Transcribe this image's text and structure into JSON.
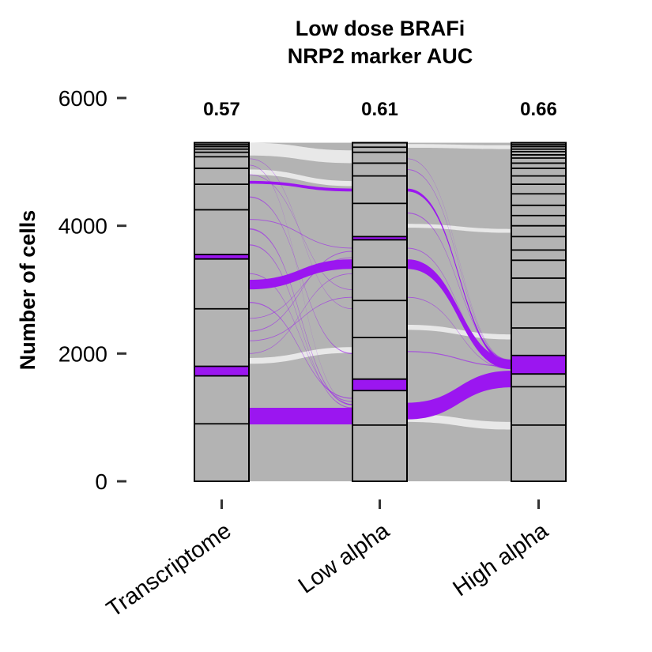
{
  "chart_data": {
    "type": "alluvial",
    "title": "Low dose BRAFi",
    "subtitle": "NRP2 marker AUC",
    "ylabel": "Number of cells",
    "xlabel": "",
    "ylim": [
      0,
      6000
    ],
    "yticks": [
      0,
      2000,
      4000,
      6000
    ],
    "total_cells": 5300,
    "categories": [
      "Transcriptome",
      "Low alpha",
      "High alpha"
    ],
    "auc": [
      "0.57",
      "0.61",
      "0.66"
    ],
    "colors": {
      "highlight": "#9b16f0",
      "background": "#b3b3b3",
      "stratum_border": "#000000"
    },
    "axes": [
      {
        "name": "Transcriptome",
        "boundaries": [
          900,
          1650,
          1800,
          2700,
          3480,
          3550,
          4250,
          4650,
          4900,
          5080,
          5150,
          5200,
          5240,
          5270
        ],
        "highlight_stratum": [
          1650,
          1800
        ],
        "highlight_stratum_2": [
          3480,
          3550
        ]
      },
      {
        "name": "Low alpha",
        "boundaries": [
          880,
          1420,
          1600,
          2250,
          2830,
          3350,
          3780,
          3830,
          4350,
          4780,
          4980,
          5150,
          5230
        ],
        "highlight_stratum": [
          1420,
          1600
        ],
        "highlight_stratum_2": [
          3780,
          3830
        ]
      },
      {
        "name": "High alpha",
        "boundaries": [
          880,
          1480,
          1680,
          1970,
          2400,
          2800,
          3180,
          3460,
          3620,
          3830,
          4000,
          4160,
          4320,
          4500,
          4650,
          4780,
          4900,
          4980,
          5060,
          5110,
          5160,
          5200,
          5240,
          5270
        ],
        "highlight_stratum": [
          1680,
          1970
        ]
      }
    ],
    "highlight_flows_1": [
      {
        "from": 1020,
        "to": 1020,
        "width": 260
      },
      {
        "from": 3080,
        "to": 3400,
        "width": 150
      },
      {
        "from": 4680,
        "to": 4560,
        "width": 45
      },
      {
        "from": 3950,
        "to": 1200,
        "width": 20
      },
      {
        "from": 3700,
        "to": 1150,
        "width": 15
      },
      {
        "from": 4450,
        "to": 2000,
        "width": 15
      },
      {
        "from": 2800,
        "to": 1300,
        "width": 15
      },
      {
        "from": 3250,
        "to": 1250,
        "width": 12
      },
      {
        "from": 2350,
        "to": 3600,
        "width": 12
      },
      {
        "from": 2550,
        "to": 3500,
        "width": 10
      },
      {
        "from": 4100,
        "to": 3650,
        "width": 12
      },
      {
        "from": 2200,
        "to": 2880,
        "width": 10
      },
      {
        "from": 2000,
        "to": 3250,
        "width": 10
      },
      {
        "from": 4800,
        "to": 3000,
        "width": 10
      },
      {
        "from": 4950,
        "to": 1200,
        "width": 8
      },
      {
        "from": 5050,
        "to": 2700,
        "width": 8
      }
    ],
    "highlight_flows_2": [
      {
        "from": 1100,
        "to": 1600,
        "width": 260
      },
      {
        "from": 3400,
        "to": 1830,
        "width": 150
      },
      {
        "from": 4560,
        "to": 1850,
        "width": 45
      },
      {
        "from": 2030,
        "to": 1800,
        "width": 15
      },
      {
        "from": 4200,
        "to": 1900,
        "width": 15
      },
      {
        "from": 4880,
        "to": 1870,
        "width": 12
      },
      {
        "from": 3650,
        "to": 1780,
        "width": 12
      },
      {
        "from": 2880,
        "to": 1760,
        "width": 10
      },
      {
        "from": 5050,
        "to": 1880,
        "width": 8
      }
    ]
  }
}
